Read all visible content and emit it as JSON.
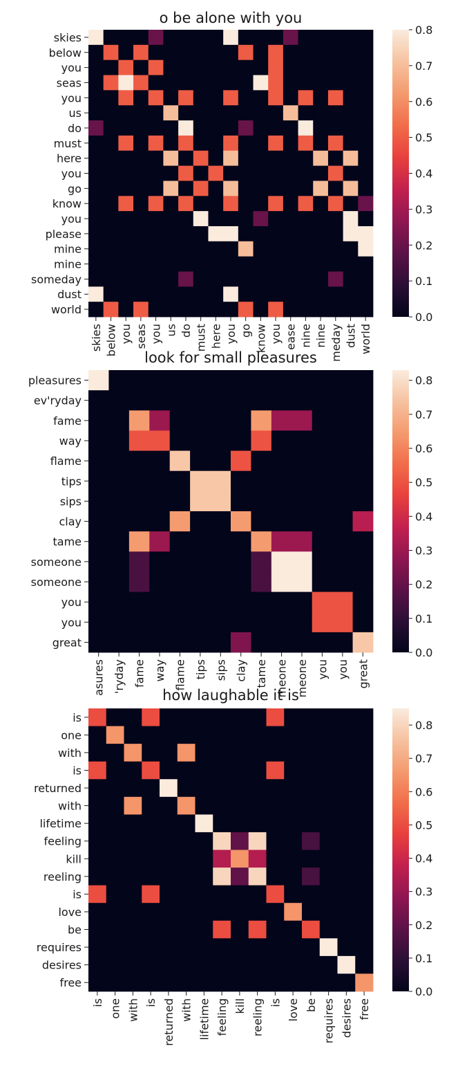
{
  "colors": {
    "cmap_name": "rocket",
    "cmap": [
      "#03051a",
      "#2b0f35",
      "#5b1247",
      "#8f1651",
      "#c2204e",
      "#e8403d",
      "#f16d4a",
      "#f49a6e",
      "#f6c2a0",
      "#faebdd"
    ],
    "axis": "#1a1a1a"
  },
  "chart_data": [
    {
      "type": "heatmap",
      "title": "o be alone with you",
      "rows": [
        "skies",
        "below",
        "you",
        "seas",
        "you",
        "us",
        "do",
        "must",
        "here",
        "you",
        "go",
        "know",
        "you",
        "please",
        "mine",
        "mine",
        "someday",
        "dust",
        "world"
      ],
      "cols": [
        "skies",
        "below",
        "you",
        "seas",
        "you",
        "us",
        "do",
        "must",
        "here",
        "you",
        "go",
        "know",
        "you",
        "please",
        "mine",
        "mine",
        "someday",
        "dust",
        "world"
      ],
      "col_tick_display": [
        "skies",
        "below",
        "you",
        "seas",
        "you",
        "us",
        "do",
        "must",
        "here",
        "you",
        "go",
        "know",
        "you",
        "ease",
        "nine",
        "nine",
        "meday",
        "dust",
        "world"
      ],
      "colorbar": {
        "min": 0.0,
        "max": 0.8,
        "ticks": [
          "0.0",
          "0.1",
          "0.2",
          "0.3",
          "0.4",
          "0.5",
          "0.6",
          "0.7",
          "0.8"
        ]
      },
      "values": [
        [
          0.8,
          0,
          0,
          0,
          0.2,
          0,
          0,
          0,
          0,
          0.8,
          0,
          0,
          0,
          0.2,
          0,
          0,
          0,
          0,
          0
        ],
        [
          0,
          0.5,
          0,
          0.5,
          0,
          0,
          0,
          0,
          0,
          0,
          0.5,
          0,
          0.5,
          0,
          0,
          0,
          0,
          0,
          0
        ],
        [
          0,
          0,
          0.5,
          0,
          0.5,
          0,
          0,
          0,
          0,
          0,
          0,
          0,
          0.5,
          0,
          0,
          0,
          0,
          0,
          0
        ],
        [
          0,
          0.5,
          0.8,
          0.5,
          0,
          0,
          0,
          0,
          0,
          0,
          0,
          0.8,
          0.5,
          0,
          0,
          0,
          0,
          0,
          0
        ],
        [
          0,
          0,
          0.5,
          0,
          0.5,
          0,
          0.5,
          0,
          0,
          0.5,
          0,
          0,
          0.5,
          0,
          0.5,
          0,
          0.5,
          0,
          0
        ],
        [
          0,
          0,
          0,
          0,
          0,
          0.7,
          0,
          0,
          0,
          0,
          0,
          0,
          0,
          0.7,
          0,
          0,
          0,
          0,
          0
        ],
        [
          0.2,
          0,
          0,
          0,
          0,
          0,
          0.8,
          0,
          0,
          0,
          0.2,
          0,
          0,
          0,
          0.8,
          0,
          0,
          0,
          0
        ],
        [
          0,
          0,
          0.5,
          0,
          0.5,
          0,
          0.5,
          0,
          0,
          0.5,
          0,
          0,
          0.5,
          0,
          0.5,
          0,
          0.5,
          0,
          0
        ],
        [
          0,
          0,
          0,
          0,
          0,
          0.7,
          0,
          0.5,
          0,
          0.7,
          0,
          0,
          0,
          0,
          0,
          0.7,
          0,
          0.7,
          0
        ],
        [
          0,
          0,
          0,
          0,
          0,
          0,
          0.5,
          0,
          0.5,
          0,
          0,
          0,
          0,
          0,
          0,
          0,
          0.5,
          0,
          0
        ],
        [
          0,
          0,
          0,
          0,
          0,
          0.7,
          0,
          0.5,
          0,
          0.7,
          0,
          0,
          0,
          0,
          0,
          0.7,
          0,
          0.7,
          0
        ],
        [
          0,
          0,
          0.5,
          0,
          0.5,
          0,
          0.5,
          0,
          0,
          0.5,
          0,
          0,
          0.5,
          0,
          0.5,
          0,
          0.5,
          0,
          0.2
        ],
        [
          0,
          0,
          0,
          0,
          0,
          0,
          0,
          0.8,
          0,
          0,
          0,
          0.2,
          0,
          0,
          0,
          0,
          0,
          0.8,
          0
        ],
        [
          0,
          0,
          0,
          0,
          0,
          0,
          0,
          0,
          0.8,
          0.8,
          0,
          0,
          0,
          0,
          0,
          0,
          0,
          0.8,
          0.8
        ],
        [
          0,
          0,
          0,
          0,
          0,
          0,
          0,
          0,
          0,
          0,
          0.7,
          0,
          0,
          0,
          0,
          0,
          0,
          0,
          0.8
        ],
        [
          0,
          0,
          0,
          0,
          0,
          0,
          0,
          0,
          0,
          0,
          0,
          0,
          0,
          0,
          0,
          0,
          0,
          0,
          0
        ],
        [
          0,
          0,
          0,
          0,
          0,
          0,
          0.2,
          0,
          0,
          0,
          0,
          0,
          0,
          0,
          0,
          0,
          0.2,
          0,
          0
        ],
        [
          0.8,
          0,
          0,
          0,
          0,
          0,
          0,
          0,
          0,
          0.8,
          0,
          0,
          0,
          0,
          0,
          0,
          0,
          0,
          0
        ],
        [
          0,
          0.5,
          0,
          0.5,
          0,
          0,
          0,
          0,
          0,
          0,
          0.5,
          0,
          0.5,
          0,
          0,
          0,
          0,
          0,
          0
        ]
      ]
    },
    {
      "type": "heatmap",
      "title": "look for small pleasures",
      "rows": [
        "pleasures",
        "ev'ryday",
        "fame",
        "way",
        "flame",
        "tips",
        "sips",
        "clay",
        "tame",
        "someone",
        "someone",
        "you",
        "you",
        "great"
      ],
      "cols": [
        "pleasures",
        "ev'ryday",
        "fame",
        "way",
        "flame",
        "tips",
        "sips",
        "clay",
        "tame",
        "someone",
        "someone",
        "you",
        "you",
        "great"
      ],
      "col_tick_display": [
        "asures",
        "'ryday",
        "fame",
        "way",
        "flame",
        "tips",
        "sips",
        "clay",
        "tame",
        "meone",
        "meone",
        "you",
        "you",
        "great"
      ],
      "colorbar": {
        "min": 0.0,
        "max": 0.83,
        "ticks": [
          "0.0",
          "0.1",
          "0.2",
          "0.3",
          "0.4",
          "0.5",
          "0.6",
          "0.7",
          "0.8"
        ]
      },
      "values": [
        [
          0.83,
          0,
          0,
          0,
          0,
          0,
          0,
          0,
          0,
          0,
          0,
          0,
          0,
          0
        ],
        [
          0,
          0,
          0,
          0,
          0,
          0,
          0,
          0,
          0,
          0,
          0,
          0,
          0,
          0
        ],
        [
          0,
          0,
          0.65,
          0.3,
          0,
          0,
          0,
          0,
          0.65,
          0.3,
          0.3,
          0,
          0,
          0
        ],
        [
          0,
          0,
          0.5,
          0.5,
          0,
          0,
          0,
          0,
          0.5,
          0,
          0,
          0,
          0,
          0
        ],
        [
          0,
          0,
          0,
          0,
          0.75,
          0,
          0,
          0.5,
          0,
          0,
          0,
          0,
          0,
          0
        ],
        [
          0,
          0,
          0,
          0,
          0,
          0.75,
          0.75,
          0,
          0,
          0,
          0,
          0,
          0,
          0
        ],
        [
          0,
          0,
          0,
          0,
          0,
          0.75,
          0.75,
          0,
          0,
          0,
          0,
          0,
          0,
          0
        ],
        [
          0,
          0,
          0,
          0,
          0.65,
          0,
          0,
          0.65,
          0,
          0,
          0,
          0,
          0,
          0.35
        ],
        [
          0,
          0,
          0.65,
          0.3,
          0,
          0,
          0,
          0,
          0.65,
          0.3,
          0.3,
          0,
          0,
          0
        ],
        [
          0,
          0,
          0.15,
          0,
          0,
          0,
          0,
          0,
          0.15,
          0.83,
          0.83,
          0,
          0,
          0
        ],
        [
          0,
          0,
          0.15,
          0,
          0,
          0,
          0,
          0,
          0.15,
          0.83,
          0.83,
          0,
          0,
          0
        ],
        [
          0,
          0,
          0,
          0,
          0,
          0,
          0,
          0,
          0,
          0,
          0,
          0.5,
          0.5,
          0
        ],
        [
          0,
          0,
          0,
          0,
          0,
          0,
          0,
          0,
          0,
          0,
          0,
          0.5,
          0.5,
          0
        ],
        [
          0,
          0,
          0,
          0,
          0,
          0,
          0,
          0.25,
          0,
          0,
          0,
          0,
          0,
          0.75
        ]
      ]
    },
    {
      "type": "heatmap",
      "title": "how laughable it is",
      "rows": [
        "is",
        "one",
        "with",
        "is",
        "returned",
        "with",
        "lifetime",
        "feeling",
        "kill",
        "reeling",
        "is",
        "love",
        "be",
        "requires",
        "desires",
        "free"
      ],
      "cols": [
        "is",
        "one",
        "with",
        "is",
        "returned",
        "with",
        "lifetime",
        "feeling",
        "kill",
        "reeling",
        "is",
        "love",
        "be",
        "requires",
        "desires",
        "free"
      ],
      "col_tick_display": [
        "is",
        "one",
        "with",
        "is",
        "returned",
        "with",
        "lifetime",
        "feeling",
        "kill",
        "reeling",
        "is",
        "love",
        "be",
        "requires",
        "desires",
        "free"
      ],
      "colorbar": {
        "min": 0.0,
        "max": 0.85,
        "ticks": [
          "0.0",
          "0.1",
          "0.2",
          "0.3",
          "0.4",
          "0.5",
          "0.6",
          "0.7",
          "0.8"
        ]
      },
      "values": [
        [
          0.5,
          0,
          0,
          0.5,
          0,
          0,
          0,
          0,
          0,
          0,
          0.5,
          0,
          0,
          0,
          0,
          0
        ],
        [
          0,
          0.65,
          0,
          0,
          0,
          0,
          0,
          0,
          0,
          0,
          0,
          0,
          0,
          0,
          0,
          0
        ],
        [
          0,
          0,
          0.65,
          0,
          0,
          0.65,
          0,
          0,
          0,
          0,
          0,
          0,
          0,
          0,
          0,
          0
        ],
        [
          0.5,
          0,
          0,
          0.5,
          0,
          0,
          0,
          0,
          0,
          0,
          0.5,
          0,
          0,
          0,
          0,
          0
        ],
        [
          0,
          0,
          0,
          0,
          0.85,
          0,
          0,
          0,
          0,
          0,
          0,
          0,
          0,
          0,
          0,
          0
        ],
        [
          0,
          0,
          0.65,
          0,
          0,
          0.65,
          0,
          0,
          0,
          0,
          0,
          0,
          0,
          0,
          0,
          0
        ],
        [
          0,
          0,
          0,
          0,
          0,
          0,
          0.85,
          0,
          0,
          0,
          0,
          0,
          0,
          0,
          0,
          0
        ],
        [
          0,
          0,
          0,
          0,
          0,
          0,
          0,
          0.8,
          0.2,
          0.8,
          0,
          0,
          0.15,
          0,
          0,
          0
        ],
        [
          0,
          0,
          0,
          0,
          0,
          0,
          0,
          0.35,
          0.65,
          0.35,
          0,
          0,
          0,
          0,
          0,
          0
        ],
        [
          0,
          0,
          0,
          0,
          0,
          0,
          0,
          0.8,
          0.2,
          0.8,
          0,
          0,
          0.15,
          0,
          0,
          0
        ],
        [
          0.5,
          0,
          0,
          0.5,
          0,
          0,
          0,
          0,
          0,
          0,
          0.5,
          0,
          0,
          0,
          0,
          0
        ],
        [
          0,
          0,
          0,
          0,
          0,
          0,
          0,
          0,
          0,
          0,
          0,
          0.65,
          0,
          0,
          0,
          0
        ],
        [
          0,
          0,
          0,
          0,
          0,
          0,
          0,
          0.5,
          0,
          0.5,
          0,
          0,
          0.5,
          0,
          0,
          0
        ],
        [
          0,
          0,
          0,
          0,
          0,
          0,
          0,
          0,
          0,
          0,
          0,
          0,
          0,
          0.85,
          0,
          0
        ],
        [
          0,
          0,
          0,
          0,
          0,
          0,
          0,
          0,
          0,
          0,
          0,
          0,
          0,
          0,
          0.85,
          0
        ],
        [
          0,
          0,
          0,
          0,
          0,
          0,
          0,
          0,
          0,
          0,
          0,
          0,
          0,
          0,
          0,
          0.65
        ]
      ]
    }
  ]
}
